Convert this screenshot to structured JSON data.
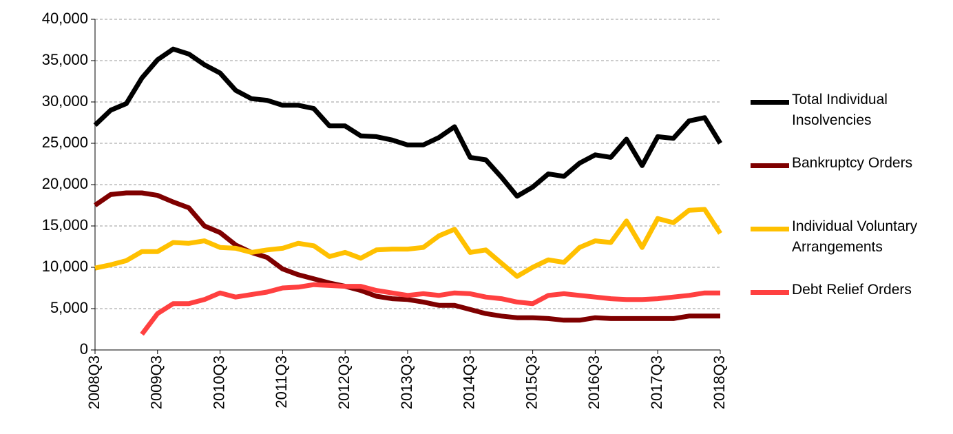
{
  "chart_data": {
    "type": "line",
    "categories": [
      "2008Q3",
      null,
      null,
      null,
      "2009Q3",
      null,
      null,
      null,
      "2010Q3",
      null,
      null,
      null,
      "2011Q3",
      null,
      null,
      null,
      "2012Q3",
      null,
      null,
      null,
      "2013Q3",
      null,
      null,
      null,
      "2014Q3",
      null,
      null,
      null,
      "2015Q3",
      null,
      null,
      null,
      "2016Q3",
      null,
      null,
      null,
      "2017Q3",
      null,
      null,
      null,
      "2018Q3"
    ],
    "ylim": [
      0,
      40000
    ],
    "yticks": [
      0,
      {
        "value": 5000,
        "label": "5,000"
      },
      {
        "value": 10000,
        "label": "10,000"
      },
      {
        "value": 15000,
        "label": "15,000"
      },
      {
        "value": 20000,
        "label": "20,000"
      },
      {
        "value": 25000,
        "label": "25,000"
      },
      {
        "value": 30000,
        "label": "30,000"
      },
      {
        "value": 35000,
        "label": "35,000"
      },
      {
        "value": 40000,
        "label": "40,000"
      }
    ],
    "grid": true,
    "legend": "right",
    "series": [
      {
        "name": "Total Individual Insolvencies",
        "color": "#000000",
        "values": [
          27200,
          29000,
          29800,
          32900,
          35100,
          36400,
          35800,
          34500,
          33500,
          31400,
          30400,
          30200,
          29600,
          29600,
          29200,
          27100,
          27100,
          25900,
          25800,
          25400,
          24800,
          24800,
          25700,
          27000,
          23300,
          23000,
          20900,
          18600,
          19700,
          21300,
          21000,
          22600,
          23600,
          23300,
          25500,
          22300,
          25800,
          25600,
          27700,
          28100,
          25000
        ]
      },
      {
        "name": "Bankruptcy Orders",
        "color": "#7f0000",
        "values": [
          17500,
          18800,
          19000,
          19000,
          18700,
          17900,
          17200,
          15000,
          14200,
          12700,
          11800,
          11200,
          9800,
          9100,
          8600,
          8100,
          7700,
          7200,
          6500,
          6200,
          6100,
          5800,
          5400,
          5400,
          4900,
          4400,
          4100,
          3900,
          3900,
          3800,
          3600,
          3600,
          3900,
          3800,
          3800,
          3800,
          3800,
          3800,
          4100,
          4100,
          4100
        ]
      },
      {
        "name": "Individual Voluntary Arrangements",
        "color": "#ffc000",
        "values": [
          9900,
          10300,
          10800,
          11900,
          11900,
          13000,
          12900,
          13200,
          12400,
          12300,
          11800,
          12100,
          12300,
          12900,
          12600,
          11300,
          11800,
          11100,
          12100,
          12200,
          12200,
          12400,
          13800,
          14600,
          11800,
          12100,
          10500,
          8900,
          10000,
          10900,
          10600,
          12400,
          13200,
          13000,
          15600,
          12400,
          15900,
          15400,
          16900,
          17000,
          14100
        ]
      },
      {
        "name": "Debt Relief Orders",
        "color": "#ff4040",
        "values": [
          null,
          null,
          null,
          1900,
          4400,
          5600,
          5600,
          6100,
          6900,
          6400,
          6700,
          7000,
          7500,
          7600,
          7900,
          7800,
          7700,
          7700,
          7200,
          6900,
          6600,
          6800,
          6600,
          6900,
          6800,
          6400,
          6200,
          5800,
          5600,
          6600,
          6800,
          6600,
          6400,
          6200,
          6100,
          6100,
          6200,
          6400,
          6600,
          6900,
          6900
        ]
      }
    ]
  }
}
